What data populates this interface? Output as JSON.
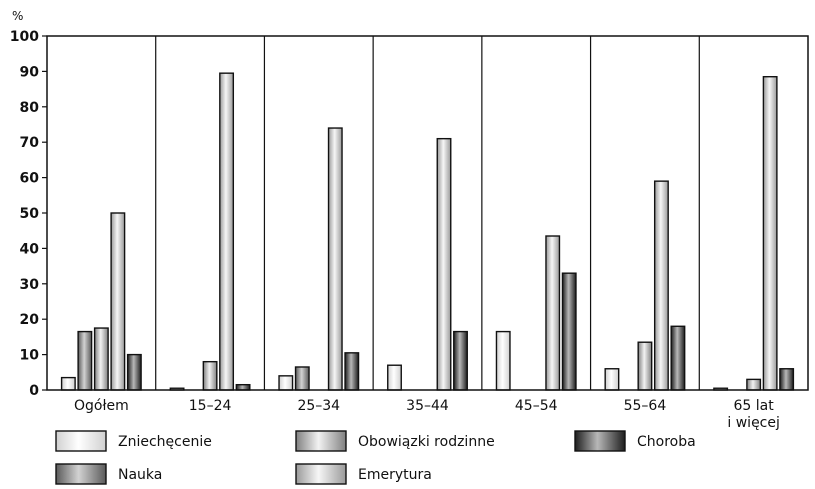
{
  "chart_data": {
    "type": "bar",
    "title": "",
    "ylabel": "%",
    "xlabel": "",
    "ylim": [
      0,
      100
    ],
    "yticks": [
      0,
      10,
      20,
      30,
      40,
      50,
      60,
      70,
      80,
      90,
      100
    ],
    "grid": "vertical group separators",
    "legend_placement": "bottom",
    "categories": [
      [
        "Ogółem"
      ],
      [
        "15–24"
      ],
      [
        "25–34"
      ],
      [
        "35–44"
      ],
      [
        "45–54"
      ],
      [
        "55–64"
      ],
      [
        "65 lat",
        "i więcej"
      ]
    ],
    "series": [
      {
        "name": "Zniechęcenie",
        "values": [
          3.5,
          0.5,
          4,
          7,
          16.5,
          6,
          0.5
        ],
        "gradient": [
          "#d0d0d0",
          "#ffffff",
          "#d0d0d0"
        ]
      },
      {
        "name": "Nauka",
        "values": [
          16.5,
          0,
          6.5,
          0,
          0,
          0,
          0
        ],
        "gradient": [
          "#5a5a5a",
          "#d2d2d2",
          "#5a5a5a"
        ]
      },
      {
        "name": "Obowiązki rodzinne",
        "values": [
          17.5,
          8,
          0,
          0,
          0,
          13.5,
          3
        ],
        "gradient": [
          "#808080",
          "#f2f2f2",
          "#808080"
        ]
      },
      {
        "name": "Emerytura",
        "values": [
          50,
          89.5,
          74,
          71,
          43.5,
          59,
          88.5
        ],
        "gradient": [
          "#9a9a9a",
          "#f6f6f6",
          "#9a9a9a"
        ]
      },
      {
        "name": "Choroba",
        "values": [
          10,
          1.5,
          10.5,
          16.5,
          33,
          18,
          6
        ],
        "gradient": [
          "#1e1e1e",
          "#b8b8b8",
          "#1e1e1e"
        ]
      }
    ],
    "legend_rows": [
      [
        "Zniechęcenie",
        "Obowiązki rodzinne",
        "Choroba"
      ],
      [
        "Nauka",
        "Emerytura"
      ]
    ]
  }
}
